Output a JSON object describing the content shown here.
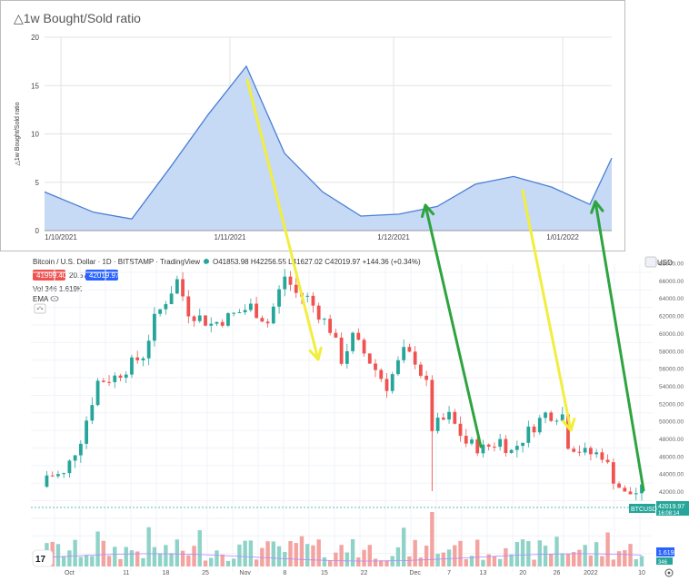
{
  "chart_data": [
    {
      "type": "area",
      "title": "△1w Bought/Sold ratio",
      "ylabel": "△1w Bought/Sold ratio",
      "ylim": [
        0,
        20
      ],
      "yticks": [
        0,
        5,
        10,
        15,
        20
      ],
      "xtick_labels": [
        "1/10/2021",
        "1/11/2021",
        "1/12/2021",
        "1/01/2022"
      ],
      "x": [
        "2021-09-28",
        "2021-10-07",
        "2021-10-14",
        "2021-10-21",
        "2021-10-28",
        "2021-11-04",
        "2021-11-11",
        "2021-11-18",
        "2021-11-25",
        "2021-12-02",
        "2021-12-09",
        "2021-12-16",
        "2021-12-23",
        "2021-12-30",
        "2022-01-06",
        "2022-01-10"
      ],
      "values": [
        4.0,
        1.9,
        1.2,
        6.5,
        12.0,
        17.0,
        8.0,
        4.0,
        1.5,
        1.7,
        2.5,
        4.8,
        5.6,
        4.5,
        2.7,
        7.5
      ],
      "grid": true,
      "color": "#4a7fd4",
      "fill": "#c6d9f5"
    },
    {
      "type": "candlestick",
      "header": {
        "symbol": "Bitcoin / U.S. Dollar · 1D · BITSTAMP · TradingView",
        "ohlc": "O41853.98 H42256.55 L41627.02 C42019.97 +144.36 (+0.34%)",
        "sell": "41999.40",
        "spread": "20.57",
        "buy": "42019.97",
        "vol": "Vol  346  1.619K",
        "ema": "EMA"
      },
      "currency": "USD",
      "ylim": [
        38000,
        70000
      ],
      "yticks": [
        40000,
        42000,
        44000,
        46000,
        48000,
        50000,
        52000,
        54000,
        56000,
        58000,
        60000,
        62000,
        64000,
        66000,
        68000
      ],
      "ytick_labels": [
        "40000.00",
        "42000.00",
        "44000.00",
        "46000.00",
        "48000.00",
        "50000.00",
        "52000.00",
        "54000.00",
        "56000.00",
        "58000.00",
        "60000.00",
        "62000.00",
        "64000.00",
        "66000.00",
        "68000.00"
      ],
      "xtick_labels": [
        "Oct",
        "11",
        "18",
        "25",
        "Nov",
        "8",
        "15",
        "22",
        "Dec",
        "7",
        "13",
        "20",
        "26",
        "2022",
        "10"
      ],
      "price_label": "42019.97",
      "price_sub": "16:08:14",
      "ticker": "BTCUSD",
      "vol_label": "1.619K",
      "vol_small": "346",
      "close_path": [
        [
          "2021-09-30",
          43800
        ],
        [
          "2021-10-03",
          48000
        ],
        [
          "2021-10-06",
          54500
        ],
        [
          "2021-10-09",
          55000
        ],
        [
          "2021-10-14",
          57500
        ],
        [
          "2021-10-16",
          61500
        ],
        [
          "2021-10-20",
          66000
        ],
        [
          "2021-10-22",
          62500
        ],
        [
          "2021-10-26",
          61000
        ],
        [
          "2021-10-29",
          61800
        ],
        [
          "2021-11-02",
          63000
        ],
        [
          "2021-11-05",
          61200
        ],
        [
          "2021-11-08",
          66500
        ],
        [
          "2021-11-10",
          64500
        ],
        [
          "2021-11-12",
          64000
        ],
        [
          "2021-11-16",
          60500
        ],
        [
          "2021-11-18",
          57000
        ],
        [
          "2021-11-20",
          59500
        ],
        [
          "2021-11-23",
          56800
        ],
        [
          "2021-11-26",
          54000
        ],
        [
          "2021-11-29",
          57800
        ],
        [
          "2021-12-01",
          57000
        ],
        [
          "2021-12-03",
          54000
        ],
        [
          "2021-12-04",
          49200
        ],
        [
          "2021-12-07",
          50500
        ],
        [
          "2021-12-10",
          47500
        ],
        [
          "2021-12-13",
          46800
        ],
        [
          "2021-12-16",
          47800
        ],
        [
          "2021-12-18",
          46500
        ],
        [
          "2021-12-21",
          48800
        ],
        [
          "2021-12-24",
          50800
        ],
        [
          "2021-12-27",
          50700
        ],
        [
          "2021-12-28",
          47500
        ],
        [
          "2021-12-31",
          46300
        ],
        [
          "2022-01-03",
          46200
        ],
        [
          "2022-01-05",
          43500
        ],
        [
          "2022-01-07",
          41600
        ],
        [
          "2022-01-10",
          42020
        ]
      ],
      "volume_bars": 108
    }
  ],
  "annotations": [
    {
      "color": "#f2ee3d",
      "from": [
        272,
        88
      ],
      "to": [
        350,
        396
      ]
    },
    {
      "color": "#2ea43f",
      "from": [
        529,
        492
      ],
      "to": [
        468,
        226
      ]
    },
    {
      "color": "#f2ee3d",
      "from": [
        575,
        210
      ],
      "to": [
        628,
        474
      ]
    },
    {
      "color": "#2ea43f",
      "from": [
        708,
        540
      ],
      "to": [
        655,
        222
      ]
    }
  ]
}
